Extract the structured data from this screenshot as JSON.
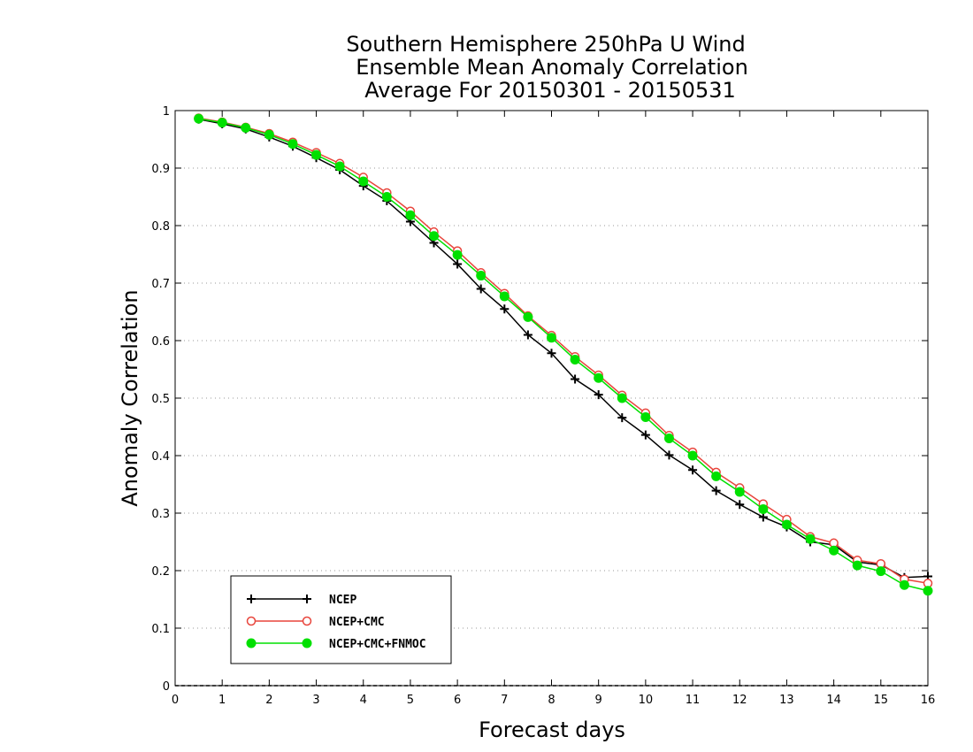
{
  "chart_data": {
    "type": "line",
    "title": [
      "Southern Hemisphere 250hPa U Wind",
      "Ensemble Mean Anomaly Correlation",
      "Average For 20150301 - 20150531"
    ],
    "xlabel": "Forecast days",
    "ylabel": "Anomaly Correlation",
    "xlim": [
      0,
      16
    ],
    "ylim": [
      0,
      1
    ],
    "xticks": [
      0,
      1,
      2,
      3,
      4,
      5,
      6,
      7,
      8,
      9,
      10,
      11,
      12,
      13,
      14,
      15,
      16
    ],
    "yticks": [
      0,
      0.1,
      0.2,
      0.3,
      0.4,
      0.5,
      0.6,
      0.7,
      0.8,
      0.9,
      1
    ],
    "ytick_labels": [
      "0",
      "0.1",
      "0.2",
      "0.3",
      "0.4",
      "0.5",
      "0.6",
      "0.7",
      "0.8",
      "0.9",
      "1"
    ],
    "grid": "horizontal-dotted",
    "legend_position": "bottom-left",
    "x": [
      0.5,
      1,
      1.5,
      2,
      2.5,
      3,
      3.5,
      4,
      4.5,
      5,
      5.5,
      6,
      6.5,
      7,
      7.5,
      8,
      8.5,
      9,
      9.5,
      10,
      10.5,
      11,
      11.5,
      12,
      12.5,
      13,
      13.5,
      14,
      14.5,
      15,
      15.5,
      16
    ],
    "series": [
      {
        "name": "NCEP",
        "color": "#000000",
        "marker": "plus",
        "values": [
          0.985,
          0.977,
          0.968,
          0.954,
          0.938,
          0.918,
          0.897,
          0.869,
          0.843,
          0.807,
          0.77,
          0.733,
          0.69,
          0.655,
          0.61,
          0.578,
          0.533,
          0.506,
          0.466,
          0.436,
          0.401,
          0.375,
          0.339,
          0.315,
          0.293,
          0.276,
          0.25,
          0.245,
          0.215,
          0.21,
          0.188,
          0.19
        ]
      },
      {
        "name": "NCEP+CMC",
        "color": "#e8453c",
        "marker": "open-circle",
        "values": [
          0.987,
          0.98,
          0.971,
          0.96,
          0.945,
          0.927,
          0.908,
          0.884,
          0.857,
          0.825,
          0.789,
          0.756,
          0.718,
          0.682,
          0.643,
          0.609,
          0.572,
          0.54,
          0.505,
          0.474,
          0.435,
          0.406,
          0.371,
          0.344,
          0.316,
          0.289,
          0.259,
          0.248,
          0.218,
          0.212,
          0.185,
          0.178
        ]
      },
      {
        "name": "NCEP+CMC+FNMOC",
        "color": "#00e000",
        "marker": "filled-circle",
        "values": [
          0.986,
          0.979,
          0.97,
          0.958,
          0.942,
          0.923,
          0.903,
          0.877,
          0.85,
          0.818,
          0.782,
          0.749,
          0.713,
          0.677,
          0.641,
          0.605,
          0.567,
          0.535,
          0.5,
          0.467,
          0.43,
          0.4,
          0.364,
          0.337,
          0.307,
          0.28,
          0.255,
          0.235,
          0.209,
          0.199,
          0.175,
          0.165
        ]
      }
    ]
  }
}
